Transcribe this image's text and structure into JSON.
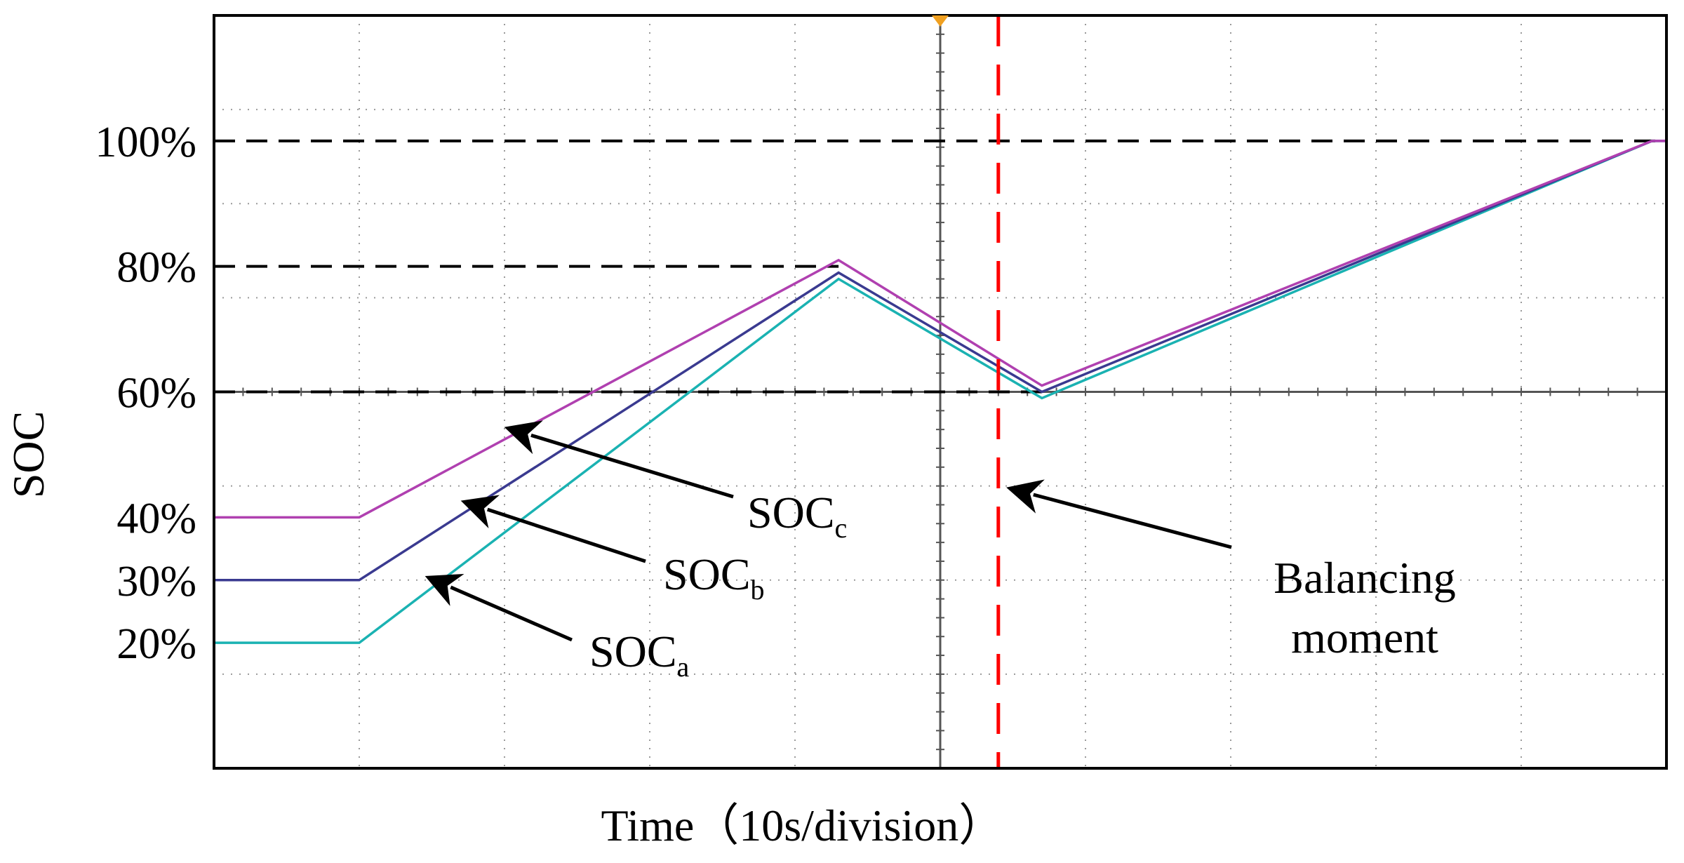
{
  "chart_data": {
    "type": "line",
    "xlabel": "Time（10s/division）",
    "ylabel": "SOC",
    "x_unit_label": "10s/division",
    "xlim": [
      0,
      10
    ],
    "ylim": [
      0,
      120
    ],
    "y_tick_labels": [
      "100%",
      "80%",
      "60%",
      "40%",
      "30%",
      "20%"
    ],
    "y_tick_values": [
      100,
      80,
      60,
      40,
      30,
      20
    ],
    "grid": true,
    "grid_style": "dotted",
    "reference_lines": [
      {
        "y": 100,
        "style": "dashed",
        "color": "#000000",
        "x_start": 0,
        "x_end": 10
      },
      {
        "y": 80,
        "style": "dashed",
        "color": "#000000",
        "x_start": 0,
        "x_end": 4.3
      },
      {
        "y": 60,
        "style": "dashed",
        "color": "#000000",
        "x_start": 0,
        "x_end": 5.7
      }
    ],
    "vertical_markers": [
      {
        "x": 5.4,
        "style": "dashed",
        "color": "#ff0000",
        "label": "Balancing moment"
      }
    ],
    "series": [
      {
        "name": "SOCa",
        "label_main": "SOC",
        "label_sub": "a",
        "color": "#1ab2b2",
        "x": [
          0,
          1.0,
          4.3,
          5.7,
          9.9,
          10
        ],
        "y": [
          20,
          20,
          78,
          59,
          100,
          100
        ]
      },
      {
        "name": "SOCb",
        "label_main": "SOC",
        "label_sub": "b",
        "color": "#3a3a90",
        "x": [
          0,
          1.0,
          4.3,
          5.7,
          9.9,
          10
        ],
        "y": [
          30,
          30,
          79,
          60,
          100,
          100
        ]
      },
      {
        "name": "SOCc",
        "label_main": "SOC",
        "label_sub": "c",
        "color": "#b040b0",
        "x": [
          0,
          1.0,
          4.3,
          5.7,
          9.9,
          10
        ],
        "y": [
          40,
          40,
          81,
          61,
          100,
          100
        ]
      }
    ],
    "annotations": [
      {
        "text": "SOC",
        "sub": "c",
        "target_series": "SOCc",
        "target_x": 2.1
      },
      {
        "text": "SOC",
        "sub": "b",
        "target_series": "SOCb",
        "target_x": 1.8
      },
      {
        "text": "SOC",
        "sub": "a",
        "target_series": "SOCa",
        "target_x": 1.55
      }
    ],
    "balancing_label_lines": [
      "Balancing",
      "moment"
    ]
  },
  "colors": {
    "frame": "#000000",
    "grid": "#9a9a9a",
    "center_axis": "#555555",
    "trigger_marker": "#f0a020"
  }
}
